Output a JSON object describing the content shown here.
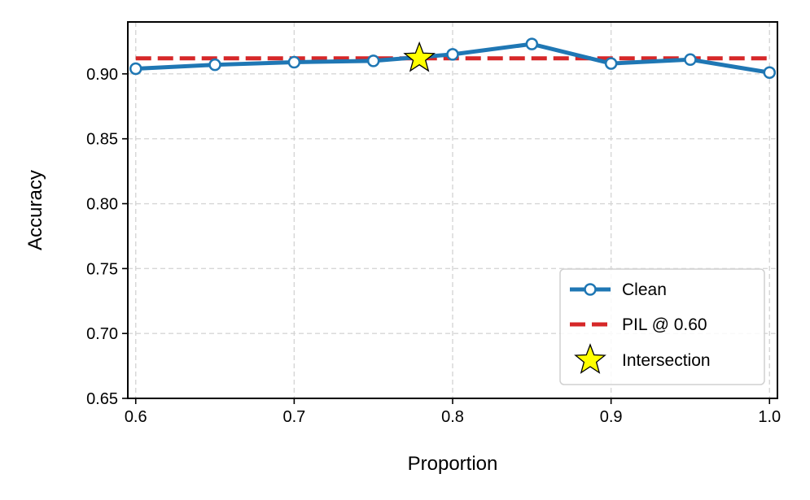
{
  "chart_data": {
    "type": "line",
    "title": "",
    "xlabel": "Proportion",
    "ylabel": "Accuracy",
    "xlim": [
      0.595,
      1.005
    ],
    "ylim": [
      0.65,
      0.94
    ],
    "xticks": [
      0.6,
      0.7,
      0.8,
      0.9,
      1.0
    ],
    "xtick_labels": [
      "0.6",
      "0.7",
      "0.8",
      "0.9",
      "1.0"
    ],
    "yticks": [
      0.65,
      0.7,
      0.75,
      0.8,
      0.85,
      0.9
    ],
    "ytick_labels": [
      "0.65",
      "0.70",
      "0.75",
      "0.80",
      "0.85",
      "0.90"
    ],
    "grid": true,
    "legend_position": "bottom-right",
    "series": [
      {
        "name": "Clean",
        "kind": "line-with-markers",
        "color": "#1f77b4",
        "x": [
          0.6,
          0.65,
          0.7,
          0.75,
          0.8,
          0.85,
          0.9,
          0.95,
          1.0
        ],
        "y": [
          0.904,
          0.907,
          0.909,
          0.91,
          0.915,
          0.923,
          0.908,
          0.911,
          0.901
        ]
      },
      {
        "name": "PIL @ 0.60",
        "kind": "horizontal-dashed",
        "color": "#d62728",
        "y": 0.912
      },
      {
        "name": "Intersection",
        "kind": "star-marker",
        "color": "#ffff00",
        "x": 0.779,
        "y": 0.912
      }
    ]
  }
}
